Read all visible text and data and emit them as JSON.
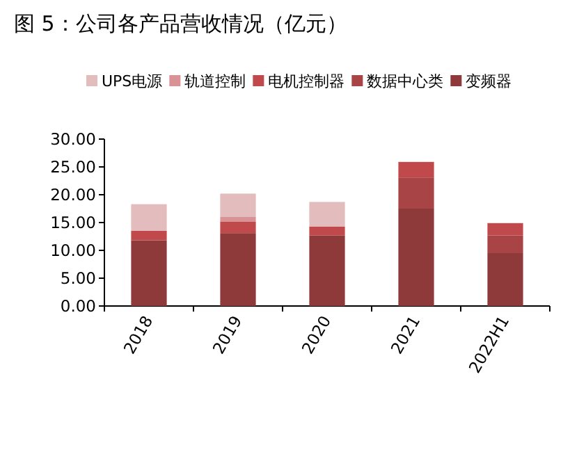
{
  "chart_data": {
    "type": "bar",
    "title": "图 5：公司各产品营收情况（亿元）",
    "stacked": true,
    "legend": "top",
    "categories": [
      "2018",
      "2019",
      "2020",
      "2021",
      "2022H1"
    ],
    "series": [
      {
        "name": "变频器",
        "color": "#8e3a3a",
        "values": [
          11.8,
          13.1,
          12.7,
          17.5,
          9.5
        ]
      },
      {
        "name": "数据中心类",
        "color": "#a94446",
        "values": [
          null,
          null,
          null,
          5.6,
          3.2
        ]
      },
      {
        "name": "电机控制器",
        "color": "#c0494b",
        "values": [
          1.7,
          2.1,
          1.6,
          2.8,
          2.2
        ]
      },
      {
        "name": "轨道控制",
        "color": "#d99396",
        "values": [
          null,
          0.8,
          null,
          null,
          null
        ]
      },
      {
        "name": "UPS电源",
        "color": "#e3bcbd",
        "values": [
          4.8,
          4.2,
          4.4,
          null,
          null
        ]
      }
    ],
    "ylim": [
      0,
      30
    ],
    "yticks": [
      {
        "value": 0,
        "label": "0.00"
      },
      {
        "value": 5,
        "label": "5.00"
      },
      {
        "value": 10,
        "label": "10.00"
      },
      {
        "value": 15,
        "label": "15.00"
      },
      {
        "value": 20,
        "label": "20.00"
      },
      {
        "value": 25,
        "label": "25.00"
      },
      {
        "value": 30,
        "label": "30.00"
      }
    ]
  }
}
